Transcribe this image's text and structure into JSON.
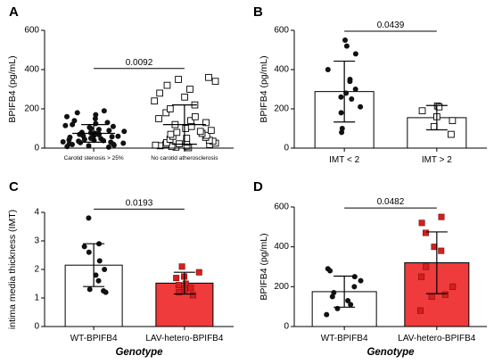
{
  "figure": {
    "colors": {
      "axis": "#000000",
      "open_bar_fill": "#ffffff",
      "red_bar_fill": "#ef3b3b",
      "red_point_fill": "#d41f1f",
      "black_point_fill": "#111111",
      "open_point_fill": "#ffffff"
    }
  },
  "chart_data": [
    {
      "panel": "A",
      "type": "bar",
      "ylabel": "BPIFB4 (pg/mL)",
      "xlabel": "",
      "ylim": [
        0,
        600
      ],
      "yticks": [
        "0",
        "200",
        "400",
        "600"
      ],
      "categories": [
        "Carotid stenosis > 25%",
        "No carotid atherosclerosis"
      ],
      "means": [
        75,
        120
      ],
      "sd": [
        45,
        100
      ],
      "bar_styles": [
        "none",
        "none"
      ],
      "point_styles": [
        "filled-circle",
        "open-square"
      ],
      "points": [
        [
          5,
          8,
          12,
          15,
          18,
          20,
          22,
          25,
          28,
          30,
          32,
          35,
          38,
          40,
          42,
          45,
          48,
          50,
          52,
          55,
          58,
          60,
          62,
          65,
          68,
          70,
          72,
          75,
          78,
          80,
          85,
          90,
          95,
          100,
          105,
          110,
          115,
          120,
          125,
          130,
          140,
          150,
          160,
          170,
          180,
          190
        ],
        [
          2,
          5,
          8,
          10,
          12,
          15,
          18,
          20,
          22,
          25,
          28,
          30,
          35,
          40,
          45,
          50,
          55,
          60,
          65,
          70,
          75,
          80,
          85,
          90,
          100,
          110,
          120,
          130,
          140,
          150,
          160,
          180,
          200,
          220,
          240,
          260,
          280,
          300,
          320,
          340,
          350,
          360
        ]
      ],
      "comparison": {
        "from": 0,
        "to": 1,
        "p_value": "0.0092"
      }
    },
    {
      "panel": "B",
      "type": "bar",
      "ylabel": "BPIFB4 (pg/mL)",
      "xlabel": "",
      "ylim": [
        0,
        600
      ],
      "yticks": [
        "0",
        "200",
        "400",
        "600"
      ],
      "categories": [
        "IMT < 2",
        "IMT > 2"
      ],
      "means": [
        288,
        155
      ],
      "sd": [
        155,
        62
      ],
      "bar_styles": [
        "white",
        "white"
      ],
      "point_styles": [
        "filled-circle",
        "open-square"
      ],
      "points": [
        [
          550,
          520,
          480,
          400,
          350,
          340,
          300,
          280,
          260,
          250,
          210,
          180,
          100,
          80
        ],
        [
          215,
          210,
          190,
          160,
          140,
          110,
          70
        ]
      ],
      "comparison": {
        "from": 0,
        "to": 1,
        "p_value": "0.0439"
      }
    },
    {
      "panel": "C",
      "type": "bar",
      "ylabel": "intima media thickness (IMT)",
      "xlabel": "Genotype",
      "ylim": [
        0,
        4
      ],
      "yticks": [
        "0",
        "1",
        "2",
        "3",
        "4"
      ],
      "categories": [
        "WT-BPIFB4",
        "LAV-hetero-BPIFB4"
      ],
      "means": [
        2.15,
        1.52
      ],
      "sd": [
        0.75,
        0.38
      ],
      "bar_styles": [
        "white",
        "red"
      ],
      "point_styles": [
        "filled-circle",
        "red-square"
      ],
      "points": [
        [
          3.8,
          2.9,
          2.8,
          2.6,
          2.3,
          2.0,
          1.8,
          1.6,
          1.3,
          1.25,
          1.2
        ],
        [
          2.1,
          1.9,
          1.75,
          1.7,
          1.5,
          1.45,
          1.35,
          1.3,
          1.2,
          1.1
        ]
      ],
      "comparison": {
        "from": 0,
        "to": 1,
        "p_value": "0.0193"
      }
    },
    {
      "panel": "D",
      "type": "bar",
      "ylabel": "BPIFB4 (pg/mL)",
      "xlabel": "Genotype",
      "ylim": [
        0,
        600
      ],
      "yticks": [
        "0",
        "200",
        "400",
        "600"
      ],
      "categories": [
        "WT-BPIFB4",
        "LAV-hetero-BPIFB4"
      ],
      "means": [
        175,
        320
      ],
      "sd": [
        78,
        155
      ],
      "bar_styles": [
        "white",
        "red"
      ],
      "point_styles": [
        "filled-circle",
        "red-square"
      ],
      "points": [
        [
          290,
          280,
          250,
          230,
          200,
          170,
          150,
          130,
          110,
          90,
          60
        ],
        [
          550,
          520,
          470,
          400,
          380,
          300,
          250,
          200,
          160,
          150,
          80
        ]
      ],
      "comparison": {
        "from": 0,
        "to": 1,
        "p_value": "0.0482"
      }
    }
  ]
}
